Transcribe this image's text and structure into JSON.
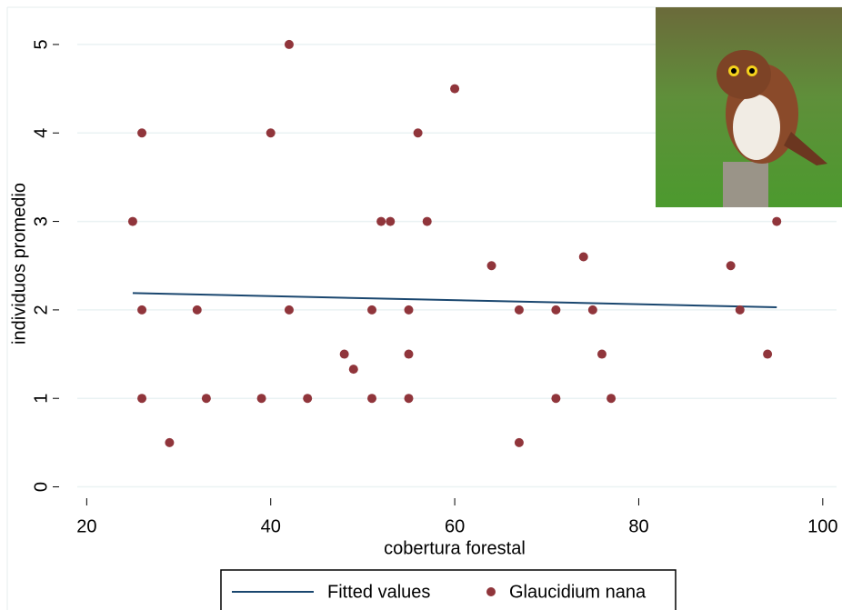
{
  "chart_data": {
    "type": "scatter",
    "x_label": "cobertura forestal",
    "y_label": "individuos promedio",
    "xlim": [
      17,
      101.5
    ],
    "ylim": [
      -0.2,
      5.4
    ],
    "xticks": [
      20,
      40,
      60,
      80,
      100
    ],
    "yticks": [
      0,
      1,
      2,
      3,
      4,
      5
    ],
    "grid": true,
    "legend": "bottom",
    "series": [
      {
        "name": "Fitted values",
        "type": "line",
        "color": "#1a476f",
        "x": [
          25,
          95
        ],
        "values": [
          2.19,
          2.03
        ]
      },
      {
        "name": "Glaucidium nana",
        "type": "scatter",
        "color": "#90353b",
        "x": [
          25,
          26,
          26,
          26,
          29,
          32,
          33,
          39,
          40,
          42,
          42,
          44,
          48,
          49,
          51,
          51,
          52,
          53,
          55,
          55,
          55,
          56,
          57,
          60,
          64,
          67,
          67,
          71,
          71,
          74,
          75,
          76,
          77,
          90,
          91,
          94,
          95
        ],
        "values": [
          3,
          4,
          2,
          1,
          0.5,
          2,
          1,
          1,
          4,
          5,
          2,
          1,
          1.5,
          1.33,
          2,
          1,
          3,
          3,
          2,
          1.5,
          1,
          4,
          3,
          4.5,
          2.5,
          2,
          0.5,
          2,
          1,
          2.6,
          2,
          1.5,
          1,
          2.5,
          2,
          1.5,
          3
        ]
      }
    ]
  }
}
